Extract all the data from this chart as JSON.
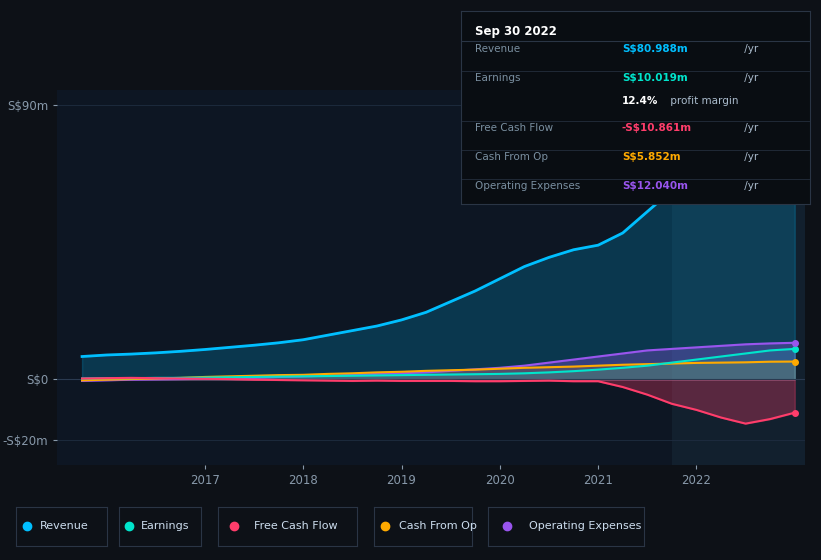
{
  "bg_color": "#0d1117",
  "plot_bg_color": "#0d1623",
  "highlight_bg_color": "#12202e",
  "grid_color": "#1e2d40",
  "x_years": [
    2015.75,
    2016.0,
    2016.25,
    2016.5,
    2016.75,
    2017.0,
    2017.25,
    2017.5,
    2017.75,
    2018.0,
    2018.25,
    2018.5,
    2018.75,
    2019.0,
    2019.25,
    2019.5,
    2019.75,
    2020.0,
    2020.25,
    2020.5,
    2020.75,
    2021.0,
    2021.25,
    2021.5,
    2021.75,
    2022.0,
    2022.25,
    2022.5,
    2022.75,
    2023.0
  ],
  "revenue": [
    7.5,
    8.0,
    8.3,
    8.7,
    9.2,
    9.8,
    10.5,
    11.2,
    12.0,
    13.0,
    14.5,
    16.0,
    17.5,
    19.5,
    22.0,
    25.5,
    29.0,
    33.0,
    37.0,
    40.0,
    42.5,
    44.0,
    48.0,
    55.0,
    62.0,
    65.0,
    68.0,
    73.0,
    78.0,
    81.0
  ],
  "earnings": [
    0.3,
    0.4,
    0.4,
    0.5,
    0.5,
    0.6,
    0.7,
    0.8,
    0.9,
    1.0,
    1.1,
    1.2,
    1.3,
    1.4,
    1.5,
    1.6,
    1.7,
    1.8,
    2.0,
    2.3,
    2.7,
    3.2,
    3.8,
    4.5,
    5.5,
    6.5,
    7.5,
    8.5,
    9.5,
    10.0
  ],
  "free_cash_flow": [
    0.3,
    0.4,
    0.5,
    0.4,
    0.3,
    0.2,
    0.1,
    -0.1,
    -0.2,
    -0.3,
    -0.4,
    -0.5,
    -0.4,
    -0.5,
    -0.5,
    -0.5,
    -0.6,
    -0.6,
    -0.5,
    -0.4,
    -0.6,
    -0.6,
    -2.5,
    -5.0,
    -8.0,
    -10.0,
    -12.5,
    -14.5,
    -13.0,
    -10.9
  ],
  "cash_from_op": [
    -0.3,
    -0.1,
    0.1,
    0.3,
    0.5,
    0.8,
    1.0,
    1.2,
    1.4,
    1.5,
    1.8,
    2.0,
    2.3,
    2.5,
    2.8,
    3.0,
    3.2,
    3.5,
    3.8,
    4.0,
    4.2,
    4.5,
    4.8,
    5.0,
    5.2,
    5.4,
    5.5,
    5.6,
    5.8,
    5.85
  ],
  "op_expenses": [
    -0.5,
    -0.3,
    -0.1,
    0.0,
    0.1,
    0.2,
    0.3,
    0.5,
    0.8,
    1.0,
    1.2,
    1.5,
    1.8,
    2.0,
    2.3,
    2.8,
    3.3,
    3.8,
    4.5,
    5.5,
    6.5,
    7.5,
    8.5,
    9.5,
    10.0,
    10.5,
    11.0,
    11.5,
    11.8,
    12.0
  ],
  "revenue_color": "#00bfff",
  "earnings_color": "#00e5cc",
  "fcf_color": "#ff3d6b",
  "cashop_color": "#ffaa00",
  "opex_color": "#9955ee",
  "highlight_x_start": 2021.75,
  "highlight_x_end": 2023.1,
  "ylim_min": -28,
  "ylim_max": 95,
  "xlim_min": 2015.5,
  "xlim_max": 2023.1,
  "ytick_labels": [
    "S$90m",
    "S$0",
    "-S$20m"
  ],
  "ytick_values": [
    90,
    0,
    -20
  ],
  "xtick_labels": [
    "2017",
    "2018",
    "2019",
    "2020",
    "2021",
    "2022"
  ],
  "xtick_values": [
    2017,
    2018,
    2019,
    2020,
    2021,
    2022
  ],
  "info_box": {
    "title": "Sep 30 2022",
    "rows": [
      {
        "label": "Revenue",
        "value": "S$80.988m",
        "suffix": " /yr",
        "value_color": "#00bfff"
      },
      {
        "label": "Earnings",
        "value": "S$10.019m",
        "suffix": " /yr",
        "value_color": "#00e5cc"
      },
      {
        "label": "",
        "value": "12.4%",
        "suffix": " profit margin",
        "value_color": "#ffffff",
        "bold_part": true
      },
      {
        "label": "Free Cash Flow",
        "value": "-S$10.861m",
        "suffix": " /yr",
        "value_color": "#ff3d6b"
      },
      {
        "label": "Cash From Op",
        "value": "S$5.852m",
        "suffix": " /yr",
        "value_color": "#ffaa00"
      },
      {
        "label": "Operating Expenses",
        "value": "S$12.040m",
        "suffix": " /yr",
        "value_color": "#9955ee"
      }
    ]
  },
  "legend_items": [
    {
      "label": "Revenue",
      "color": "#00bfff"
    },
    {
      "label": "Earnings",
      "color": "#00e5cc"
    },
    {
      "label": "Free Cash Flow",
      "color": "#ff3d6b"
    },
    {
      "label": "Cash From Op",
      "color": "#ffaa00"
    },
    {
      "label": "Operating Expenses",
      "color": "#9955ee"
    }
  ]
}
